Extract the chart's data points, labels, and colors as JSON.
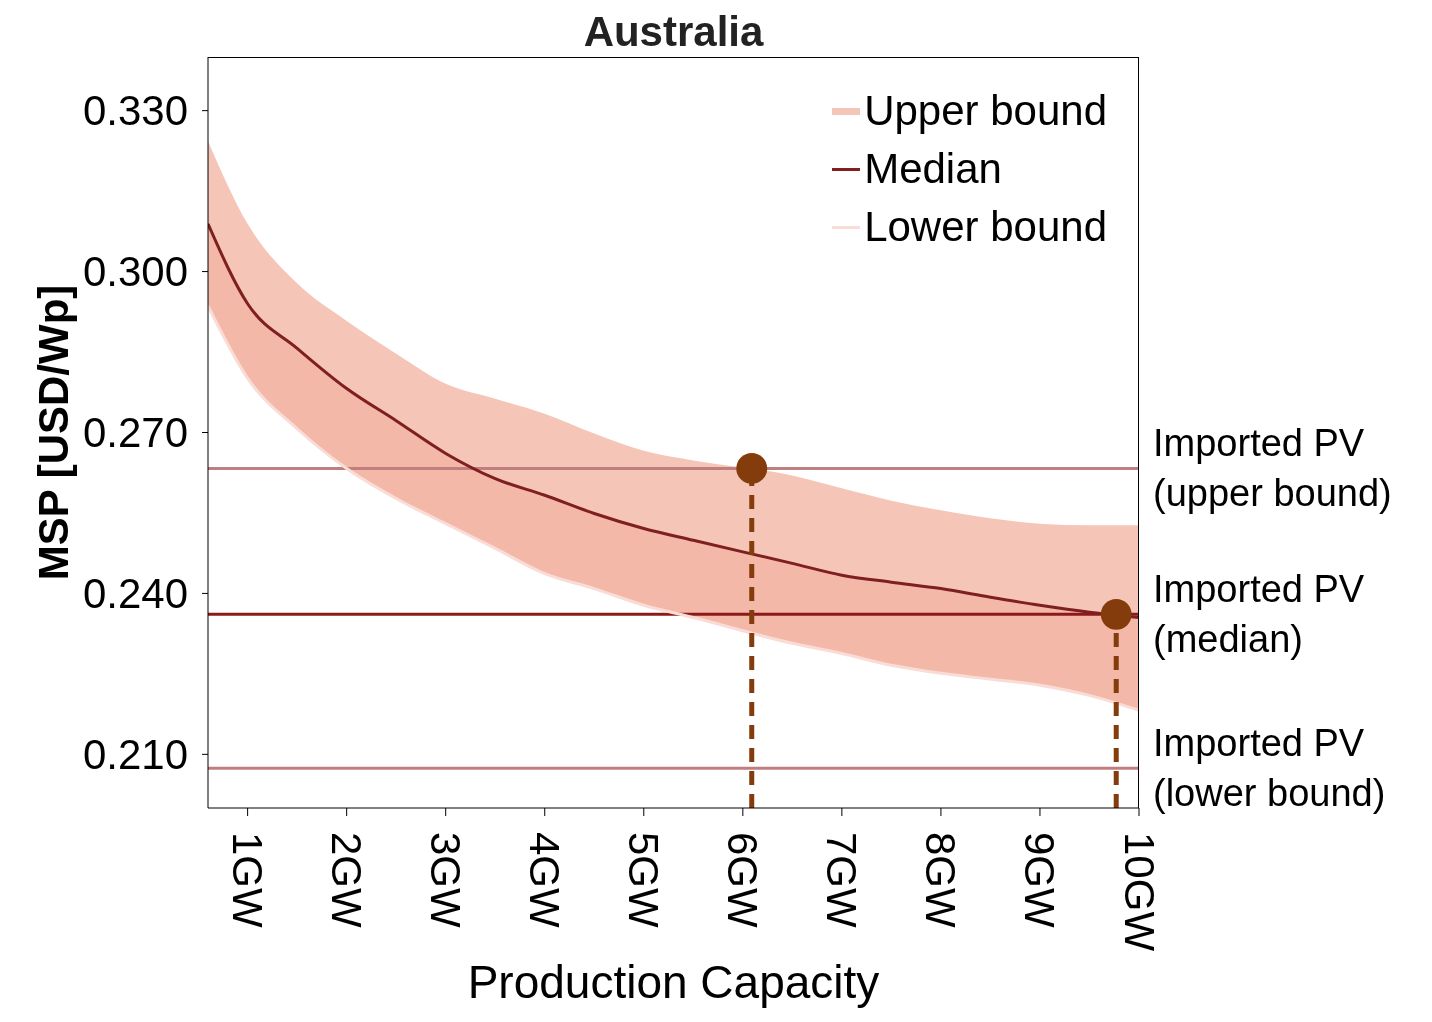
{
  "chart_data": {
    "type": "line",
    "title": "Australia",
    "xlabel": "Production Capacity",
    "ylabel": "MSP [USD/Wp]",
    "x": [
      0.6,
      1,
      1.5,
      2,
      2.5,
      3,
      3.5,
      4,
      4.5,
      5,
      5.5,
      6.5,
      7,
      7.5,
      8,
      8.5,
      9,
      9.5,
      10
    ],
    "series": [
      {
        "name": "Upper bound",
        "type": "area",
        "color": "#f5c6b8",
        "values": [
          0.3243,
          0.3089,
          0.2978,
          0.2908,
          0.2847,
          0.2791,
          0.2763,
          0.2735,
          0.2698,
          0.2666,
          0.2648,
          0.262,
          0.2596,
          0.2573,
          0.2555,
          0.254,
          0.253,
          0.2527,
          0.2527
        ]
      },
      {
        "name": "Median",
        "color": "#7f1f1f",
        "values": [
          0.3089,
          0.294,
          0.2857,
          0.2782,
          0.2722,
          0.2661,
          0.2614,
          0.2583,
          0.2549,
          0.2521,
          0.2499,
          0.2456,
          0.2434,
          0.2421,
          0.2409,
          0.2393,
          0.2378,
          0.2365,
          0.2355
        ],
        "lower": [
          0.2936,
          0.2801,
          0.2707,
          0.2633,
          0.2577,
          0.253,
          0.2484,
          0.2437,
          0.2409,
          0.2378,
          0.2355,
          0.2307,
          0.2288,
          0.2266,
          0.2251,
          0.224,
          0.2229,
          0.221,
          0.2182
        ],
        "upper": [
          0.3089,
          0.294,
          0.2857,
          0.2782,
          0.2722,
          0.2661,
          0.2614,
          0.2583,
          0.2549,
          0.2521,
          0.2499,
          0.2456,
          0.2434,
          0.2421,
          0.2409,
          0.2393,
          0.2378,
          0.2365,
          0.2355
        ]
      },
      {
        "name": "Lower bound",
        "type": "line",
        "color": "#f9dcd5",
        "values": [
          0.2936,
          0.2801,
          0.2707,
          0.2633,
          0.2577,
          0.253,
          0.2484,
          0.2437,
          0.2409,
          0.2378,
          0.2355,
          0.2307,
          0.2288,
          0.2266,
          0.2251,
          0.224,
          0.2229,
          0.221,
          0.2182
        ]
      },
      {
        "type": "scatter",
        "color": "#843c0c",
        "marker": "circle",
        "x": [
          6.09,
          9.77
        ],
        "values": [
          0.2633,
          0.2361
        ]
      }
    ],
    "ref_lines": [
      {
        "axis": "y",
        "value": 0.2633,
        "label": "Imported PV\n(upper bound)",
        "color": "#c07f7f"
      },
      {
        "axis": "y",
        "value": 0.2361,
        "label": "Imported PV\n(median)",
        "color": "#8b1a1a"
      },
      {
        "axis": "y",
        "value": 0.2074,
        "label": "Imported PV\n(lower bound)",
        "color": "#c07f7f"
      },
      {
        "axis": "x",
        "value": 6.09,
        "color": "#843c0c",
        "line_style": "dashed"
      },
      {
        "axis": "x",
        "value": 9.77,
        "color": "#843c0c",
        "line_style": "dashed"
      }
    ],
    "xlim": [
      0.6,
      10
    ],
    "xticks": [
      {
        "value": 1,
        "label": "1GW"
      },
      {
        "value": 2,
        "label": "2GW"
      },
      {
        "value": 3,
        "label": "3GW"
      },
      {
        "value": 4,
        "label": "4GW"
      },
      {
        "value": 5,
        "label": "5GW"
      },
      {
        "value": 6,
        "label": "6GW"
      },
      {
        "value": 7,
        "label": "7GW"
      },
      {
        "value": 8,
        "label": "8GW"
      },
      {
        "value": 9,
        "label": "9GW"
      },
      {
        "value": 10,
        "label": "10GW"
      }
    ],
    "ylim": [
      0.2,
      0.34
    ],
    "yticks": [
      {
        "value": 0.21,
        "label": "0.210"
      },
      {
        "value": 0.24,
        "label": "0.240"
      },
      {
        "value": 0.27,
        "label": "0.270"
      },
      {
        "value": 0.3,
        "label": "0.300"
      },
      {
        "value": 0.33,
        "label": "0.330"
      }
    ],
    "grid": false,
    "legend": "top right"
  }
}
